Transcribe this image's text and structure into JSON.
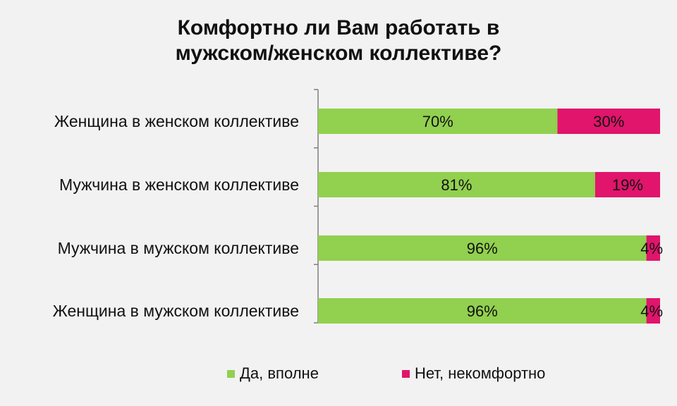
{
  "chart_data": {
    "type": "bar",
    "orientation": "horizontal",
    "stacked": true,
    "percent": true,
    "title": [
      "Комфортно ли Вам работать в",
      "мужском/женском коллективе?"
    ],
    "categories": [
      "Женщина  в женском коллективе",
      "Мужчина в женском  коллективе",
      "Мужчина  в мужском коллективе",
      "Женщина  в мужском коллективе"
    ],
    "series": [
      {
        "name": "Да,  вполне",
        "color": "#92d050",
        "values": [
          70,
          81,
          96,
          96
        ],
        "labels": [
          "70%",
          "81%",
          "96%",
          "96%"
        ]
      },
      {
        "name": "Нет,  некомфортно",
        "color": "#e0156b",
        "values": [
          30,
          19,
          4,
          4
        ],
        "labels": [
          "30%",
          "19%",
          "4%",
          "4%"
        ]
      }
    ],
    "xlim": [
      0,
      100
    ],
    "grid": false,
    "legend_position": "bottom"
  }
}
